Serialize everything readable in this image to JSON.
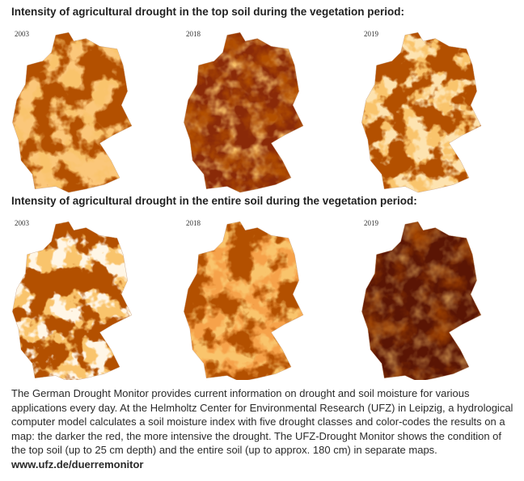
{
  "sections": [
    {
      "title": "Intensity of agricultural drought in the top soil during the vegetation period:",
      "maps": [
        {
          "year": "2003"
        },
        {
          "year": "2018"
        },
        {
          "year": "2019"
        }
      ]
    },
    {
      "title": "Intensity of agricultural drought in the entire soil during the vegetation period:",
      "maps": [
        {
          "year": "2003"
        },
        {
          "year": "2018"
        },
        {
          "year": "2019"
        }
      ]
    }
  ],
  "caption": {
    "text": "The German Drought Monitor provides current information on drought and soil moisture for various applications every day. At the Helmholtz Center for Environmental Research (UFZ) in Leipzig, a hydrological computer model calculates a soil moisture index with five drought classes and color-codes the results on a map: the darker the red, the more intensive the drought. The UFZ-Drought Monitor shows the condition of the top soil (up to 25 cm depth) and the entire soil (up to approx. 180 cm) in separate maps.",
    "link": "www.ufz.de/duerremonitor"
  }
}
